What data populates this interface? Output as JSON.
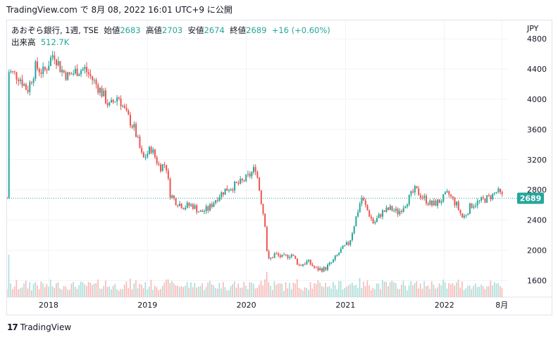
{
  "header": {
    "caption": "TradingView.com で 8月 08, 2022 16:01 UTC+9 に公開"
  },
  "legend": {
    "symbol": "あおぞら銀行, 1週, TSE",
    "open_label": "始値",
    "open": "2683",
    "high_label": "高値",
    "high": "2703",
    "low_label": "安値",
    "low": "2674",
    "close_label": "終値",
    "close": "2689",
    "change": "+16 (+0.60%)",
    "volume_label": "出来高",
    "volume": "512.7K"
  },
  "currency": "JPY",
  "footer": {
    "brand": "TradingView",
    "logo": "17"
  },
  "colors": {
    "up": "#26a69a",
    "down": "#ef5350",
    "up_vol": "#a8ddd6",
    "down_vol": "#f7b7b5",
    "grid": "#f0f3fa",
    "axis_text": "#131722"
  },
  "chart_data": {
    "type": "candlestick",
    "title": "あおぞら銀行, 1週, TSE",
    "ylabel": "JPY",
    "y_ticks": [
      1600,
      2000,
      2400,
      2800,
      3200,
      3600,
      4000,
      4400,
      4800
    ],
    "x_ticks": [
      "2018",
      "2019",
      "2020",
      "2021",
      "2022",
      "8月"
    ],
    "ylim": [
      1380,
      4830
    ],
    "last_price": 2689,
    "grid": true,
    "series_anchors": [
      [
        "2017-08-07",
        4370
      ],
      [
        "2017-09-15",
        4300
      ],
      [
        "2017-10-15",
        4120
      ],
      [
        "2017-11-15",
        4430
      ],
      [
        "2017-12-15",
        4350
      ],
      [
        "2018-01-20",
        4620
      ],
      [
        "2018-02-15",
        4400
      ],
      [
        "2018-03-15",
        4300
      ],
      [
        "2018-04-15",
        4380
      ],
      [
        "2018-05-15",
        4400
      ],
      [
        "2018-06-15",
        4250
      ],
      [
        "2018-07-15",
        4100
      ],
      [
        "2018-08-15",
        3900
      ],
      [
        "2018-09-15",
        4050
      ],
      [
        "2018-10-15",
        3800
      ],
      [
        "2018-11-15",
        3600
      ],
      [
        "2018-12-15",
        3200
      ],
      [
        "2019-01-15",
        3350
      ],
      [
        "2019-02-15",
        3100
      ],
      [
        "2019-03-10",
        3150
      ],
      [
        "2019-03-25",
        2750
      ],
      [
        "2019-04-15",
        2650
      ],
      [
        "2019-05-15",
        2580
      ],
      [
        "2019-06-15",
        2600
      ],
      [
        "2019-07-15",
        2500
      ],
      [
        "2019-08-15",
        2550
      ],
      [
        "2019-09-15",
        2700
      ],
      [
        "2019-10-15",
        2800
      ],
      [
        "2019-11-15",
        2850
      ],
      [
        "2019-12-15",
        2900
      ],
      [
        "2020-01-15",
        3000
      ],
      [
        "2020-02-05",
        3100
      ],
      [
        "2020-02-25",
        2650
      ],
      [
        "2020-03-10",
        2350
      ],
      [
        "2020-03-20",
        1850
      ],
      [
        "2020-04-15",
        1950
      ],
      [
        "2020-05-15",
        1900
      ],
      [
        "2020-06-15",
        1950
      ],
      [
        "2020-07-15",
        1800
      ],
      [
        "2020-08-15",
        1850
      ],
      [
        "2020-09-15",
        1750
      ],
      [
        "2020-10-15",
        1750
      ],
      [
        "2020-11-15",
        1850
      ],
      [
        "2020-12-15",
        2000
      ],
      [
        "2021-01-15",
        2100
      ],
      [
        "2021-02-10",
        2450
      ],
      [
        "2021-03-01",
        2700
      ],
      [
        "2021-03-20",
        2550
      ],
      [
        "2021-04-15",
        2350
      ],
      [
        "2021-05-15",
        2500
      ],
      [
        "2021-06-15",
        2550
      ],
      [
        "2021-07-15",
        2500
      ],
      [
        "2021-08-15",
        2650
      ],
      [
        "2021-09-15",
        2800
      ],
      [
        "2021-10-15",
        2700
      ],
      [
        "2021-11-15",
        2600
      ],
      [
        "2021-12-15",
        2650
      ],
      [
        "2022-01-15",
        2750
      ],
      [
        "2022-02-15",
        2600
      ],
      [
        "2022-03-10",
        2420
      ],
      [
        "2022-04-10",
        2600
      ],
      [
        "2022-05-15",
        2650
      ],
      [
        "2022-06-15",
        2700
      ],
      [
        "2022-07-15",
        2780
      ],
      [
        "2022-08-08",
        2689
      ]
    ]
  }
}
